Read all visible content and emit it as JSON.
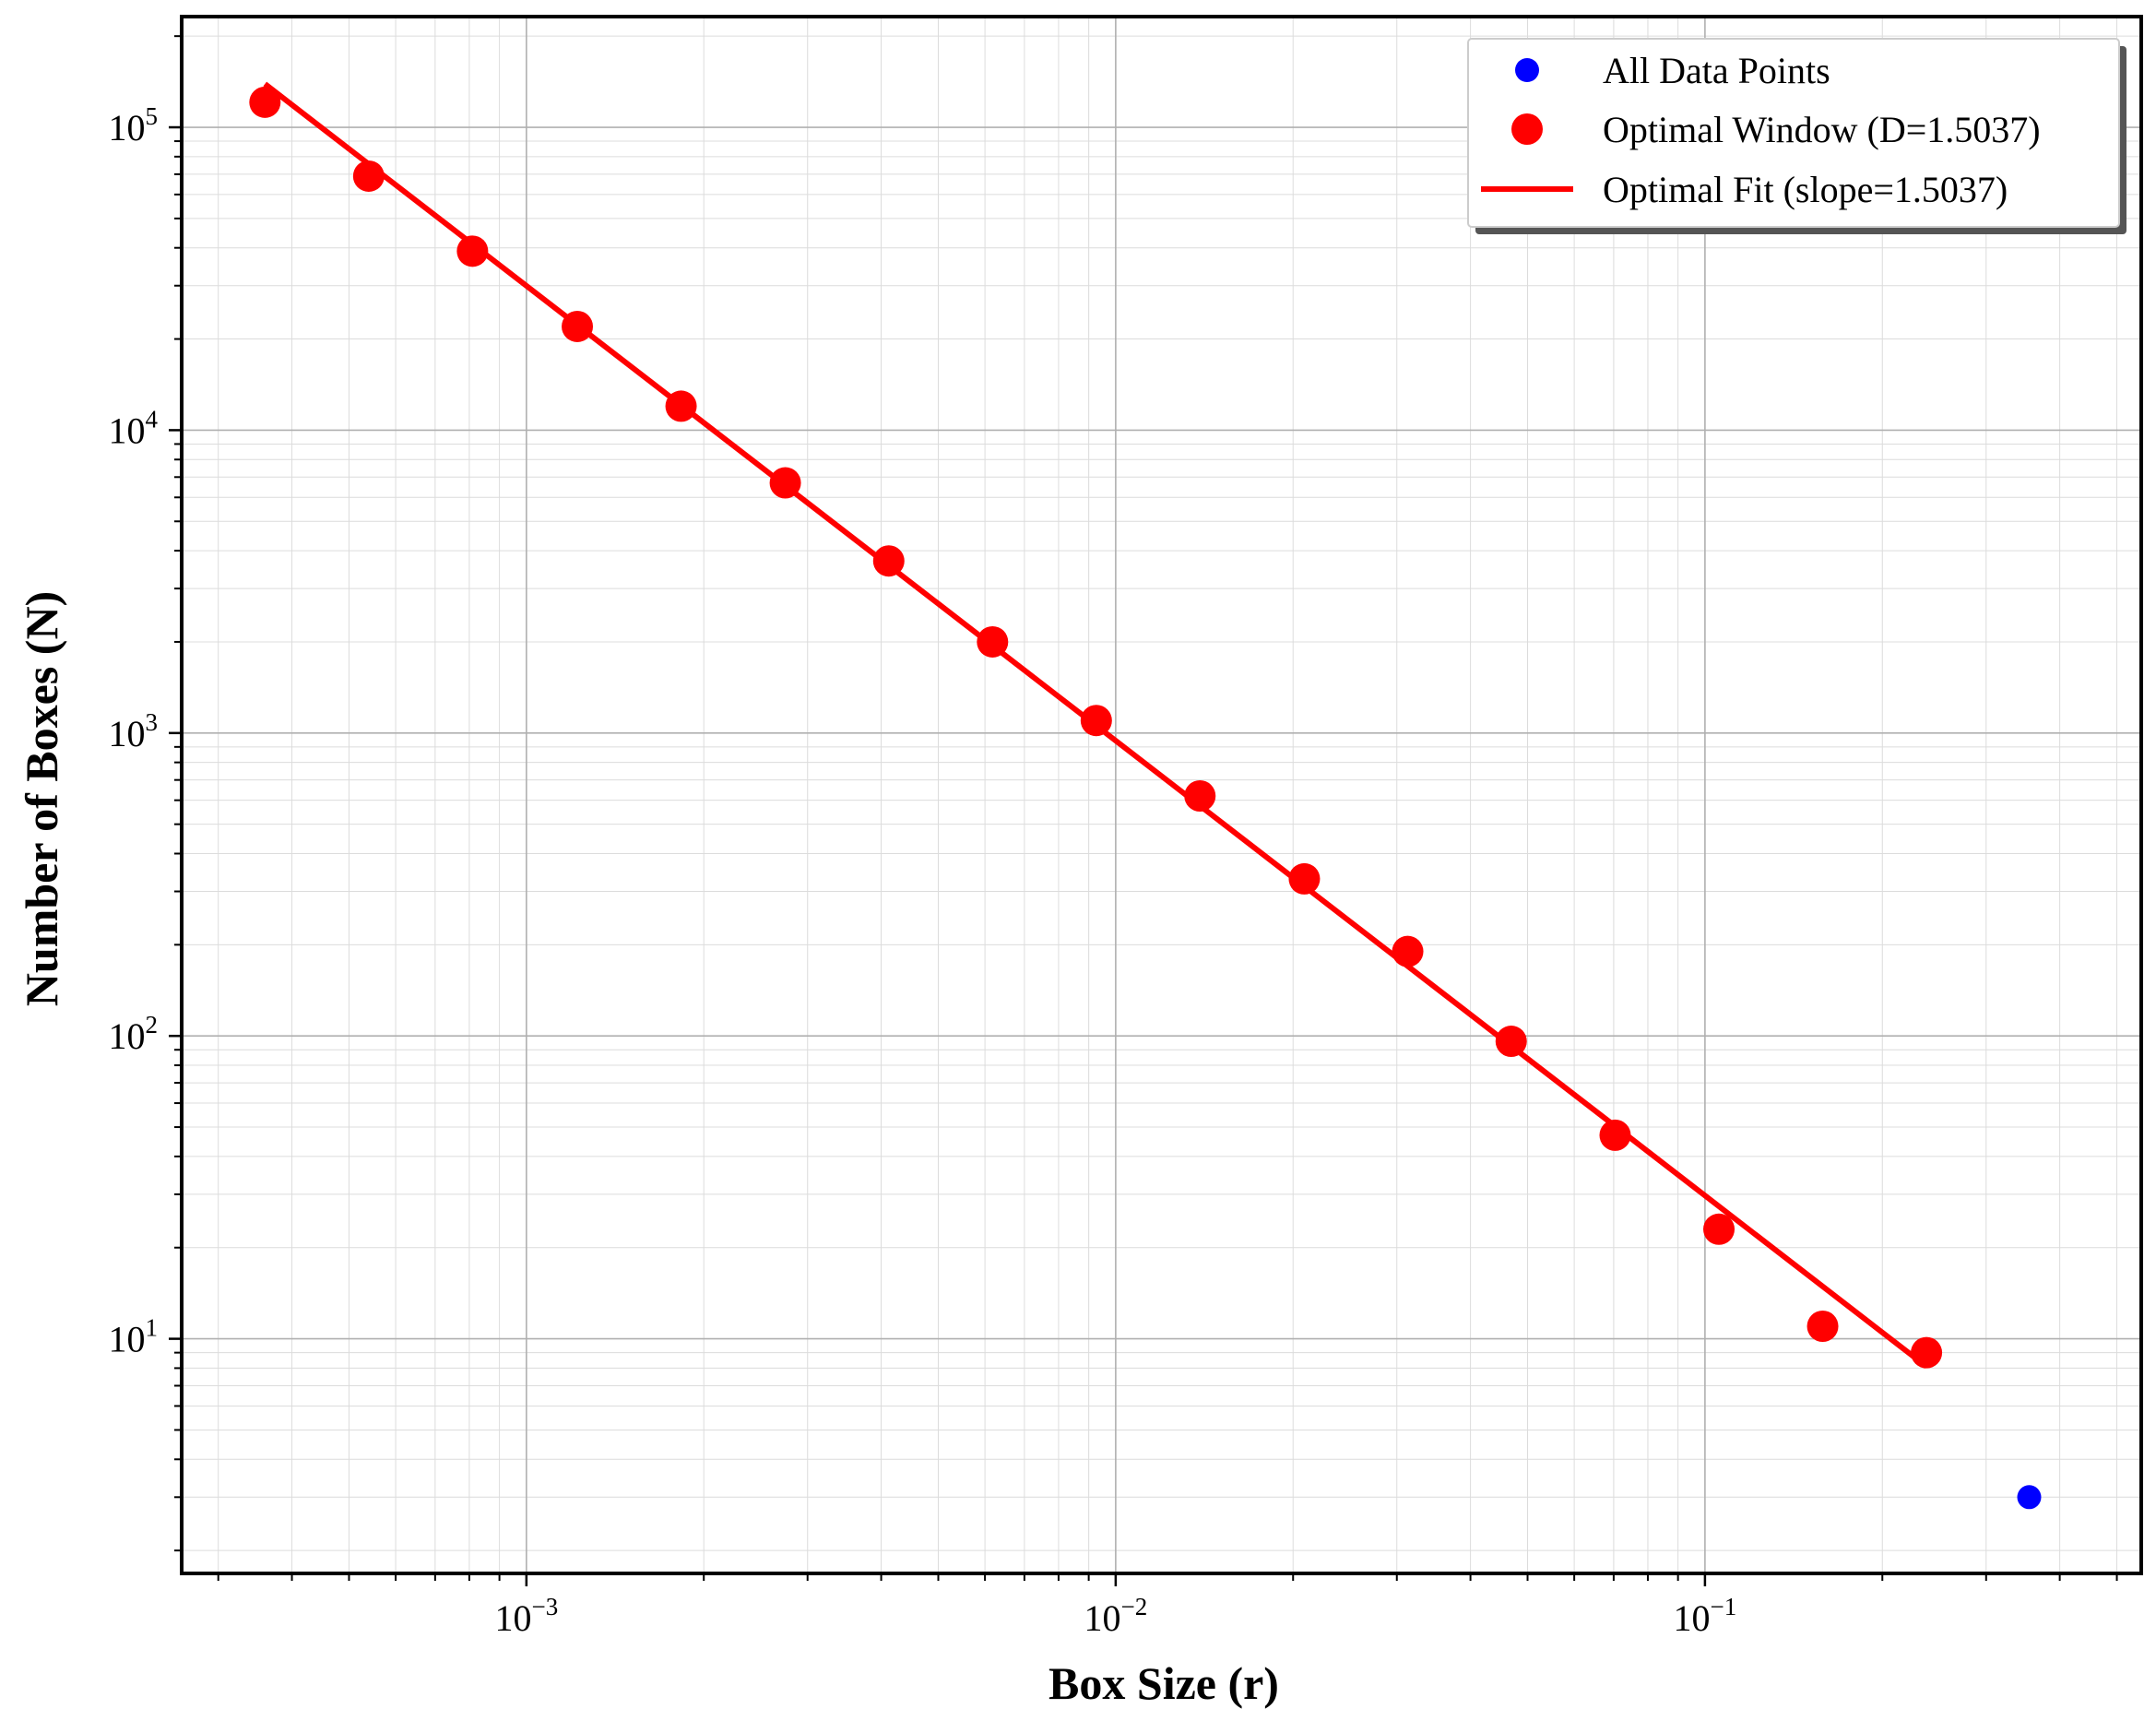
{
  "chart_data": {
    "type": "scatter",
    "xscale": "log",
    "yscale": "log",
    "xlabel": "Box Size (r)",
    "ylabel": "Number of Boxes (N)",
    "xlim": [
      0.00026,
      0.55
    ],
    "ylim": [
      1.68,
      232000
    ],
    "grid": true,
    "legend_position": "top-right",
    "x_ticks": [
      {
        "value": 0.001,
        "base": "10",
        "exp": "−3"
      },
      {
        "value": 0.01,
        "base": "10",
        "exp": "−2"
      },
      {
        "value": 0.1,
        "base": "10",
        "exp": "−1"
      }
    ],
    "y_ticks": [
      {
        "value": 10,
        "base": "10",
        "exp": "1"
      },
      {
        "value": 100,
        "base": "10",
        "exp": "2"
      },
      {
        "value": 1000,
        "base": "10",
        "exp": "3"
      },
      {
        "value": 10000,
        "base": "10",
        "exp": "4"
      },
      {
        "value": 100000,
        "base": "10",
        "exp": "5"
      }
    ],
    "series": [
      {
        "name": "All Data Points",
        "kind": "scatter",
        "color": "#0000ff",
        "x": [
          0.355
        ],
        "y": [
          3
        ]
      },
      {
        "name": "Optimal Window (D=1.5037)",
        "kind": "scatter",
        "color": "#ff0000",
        "x": [
          0.00036,
          0.00054,
          0.00081,
          0.00122,
          0.00183,
          0.00275,
          0.00412,
          0.00618,
          0.00927,
          0.0139,
          0.0209,
          0.0313,
          0.0469,
          0.0704,
          0.1056,
          0.1584,
          0.2376
        ],
        "y": [
          121000,
          69000,
          39000,
          22000,
          12000,
          6700,
          3700,
          2000,
          1100,
          620,
          330,
          190,
          96,
          47,
          23,
          11,
          9
        ]
      },
      {
        "name": "Optimal Fit (slope=1.5037)",
        "kind": "line",
        "color": "#ff0000",
        "x": [
          0.00036,
          0.2376
        ],
        "y": [
          139000,
          8.1
        ]
      }
    ]
  }
}
